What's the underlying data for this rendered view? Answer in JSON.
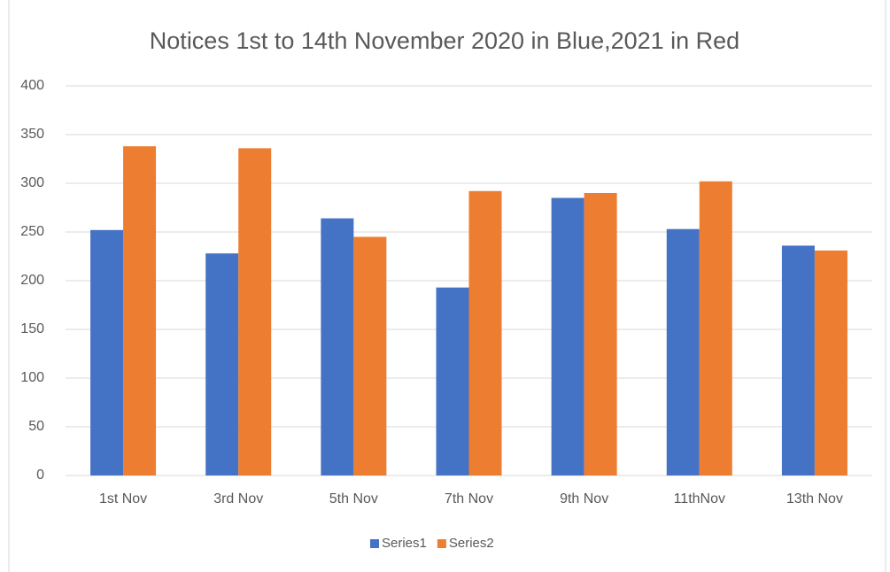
{
  "chart_data": {
    "type": "bar",
    "title": "Notices 1st to 14th November 2020 in Blue,2021 in Red",
    "categories": [
      "1st Nov",
      "3rd Nov",
      "5th Nov",
      "7th Nov",
      "9th Nov",
      "11thNov",
      "13th Nov"
    ],
    "series": [
      {
        "name": "Series1",
        "color": "#4472c4",
        "values": [
          252,
          228,
          264,
          193,
          285,
          253,
          236
        ]
      },
      {
        "name": "Series2",
        "color": "#ed7d31",
        "values": [
          338,
          336,
          245,
          292,
          290,
          302,
          231
        ]
      }
    ],
    "ylim": [
      0,
      400
    ],
    "yticks": [
      0,
      50,
      100,
      150,
      200,
      250,
      300,
      350,
      400
    ],
    "grid": true,
    "legend": "bottom"
  }
}
